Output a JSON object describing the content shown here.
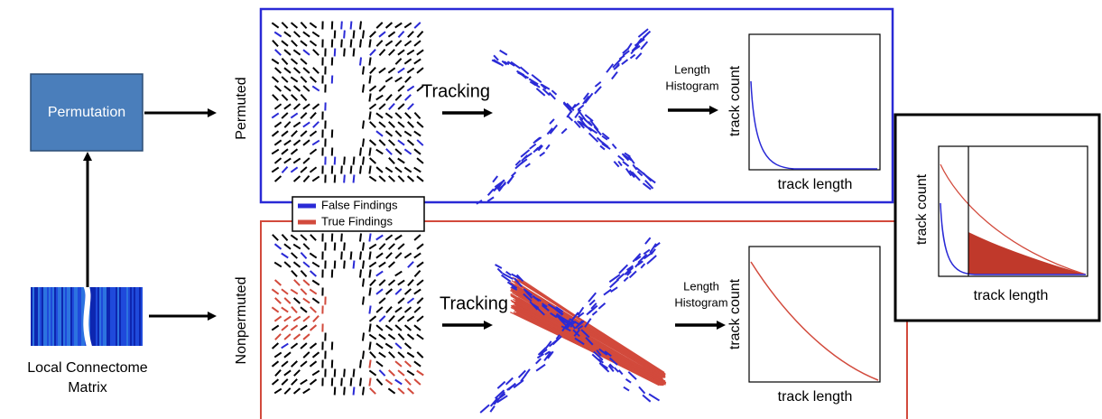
{
  "left": {
    "process": "Permutation",
    "matrix_label": [
      "Local Connectome",
      "Matrix"
    ]
  },
  "panels": [
    {
      "label": "Permuted",
      "step": "Tracking",
      "histogram_step": [
        "Length",
        "Histogram"
      ],
      "y_label": "track count",
      "x_label": "track length"
    },
    {
      "label": "Nonpermuted",
      "step": "Tracking",
      "histogram_step": [
        "Length",
        "Histogram"
      ],
      "y_label": "track count",
      "x_label": "track length"
    }
  ],
  "legend": [
    {
      "name": "False Findings",
      "color": "#2a2ad6"
    },
    {
      "name": "True Findings",
      "color": "#d24a3c"
    }
  ],
  "comparison": {
    "y_label": "track count",
    "x_label": "track length"
  }
}
